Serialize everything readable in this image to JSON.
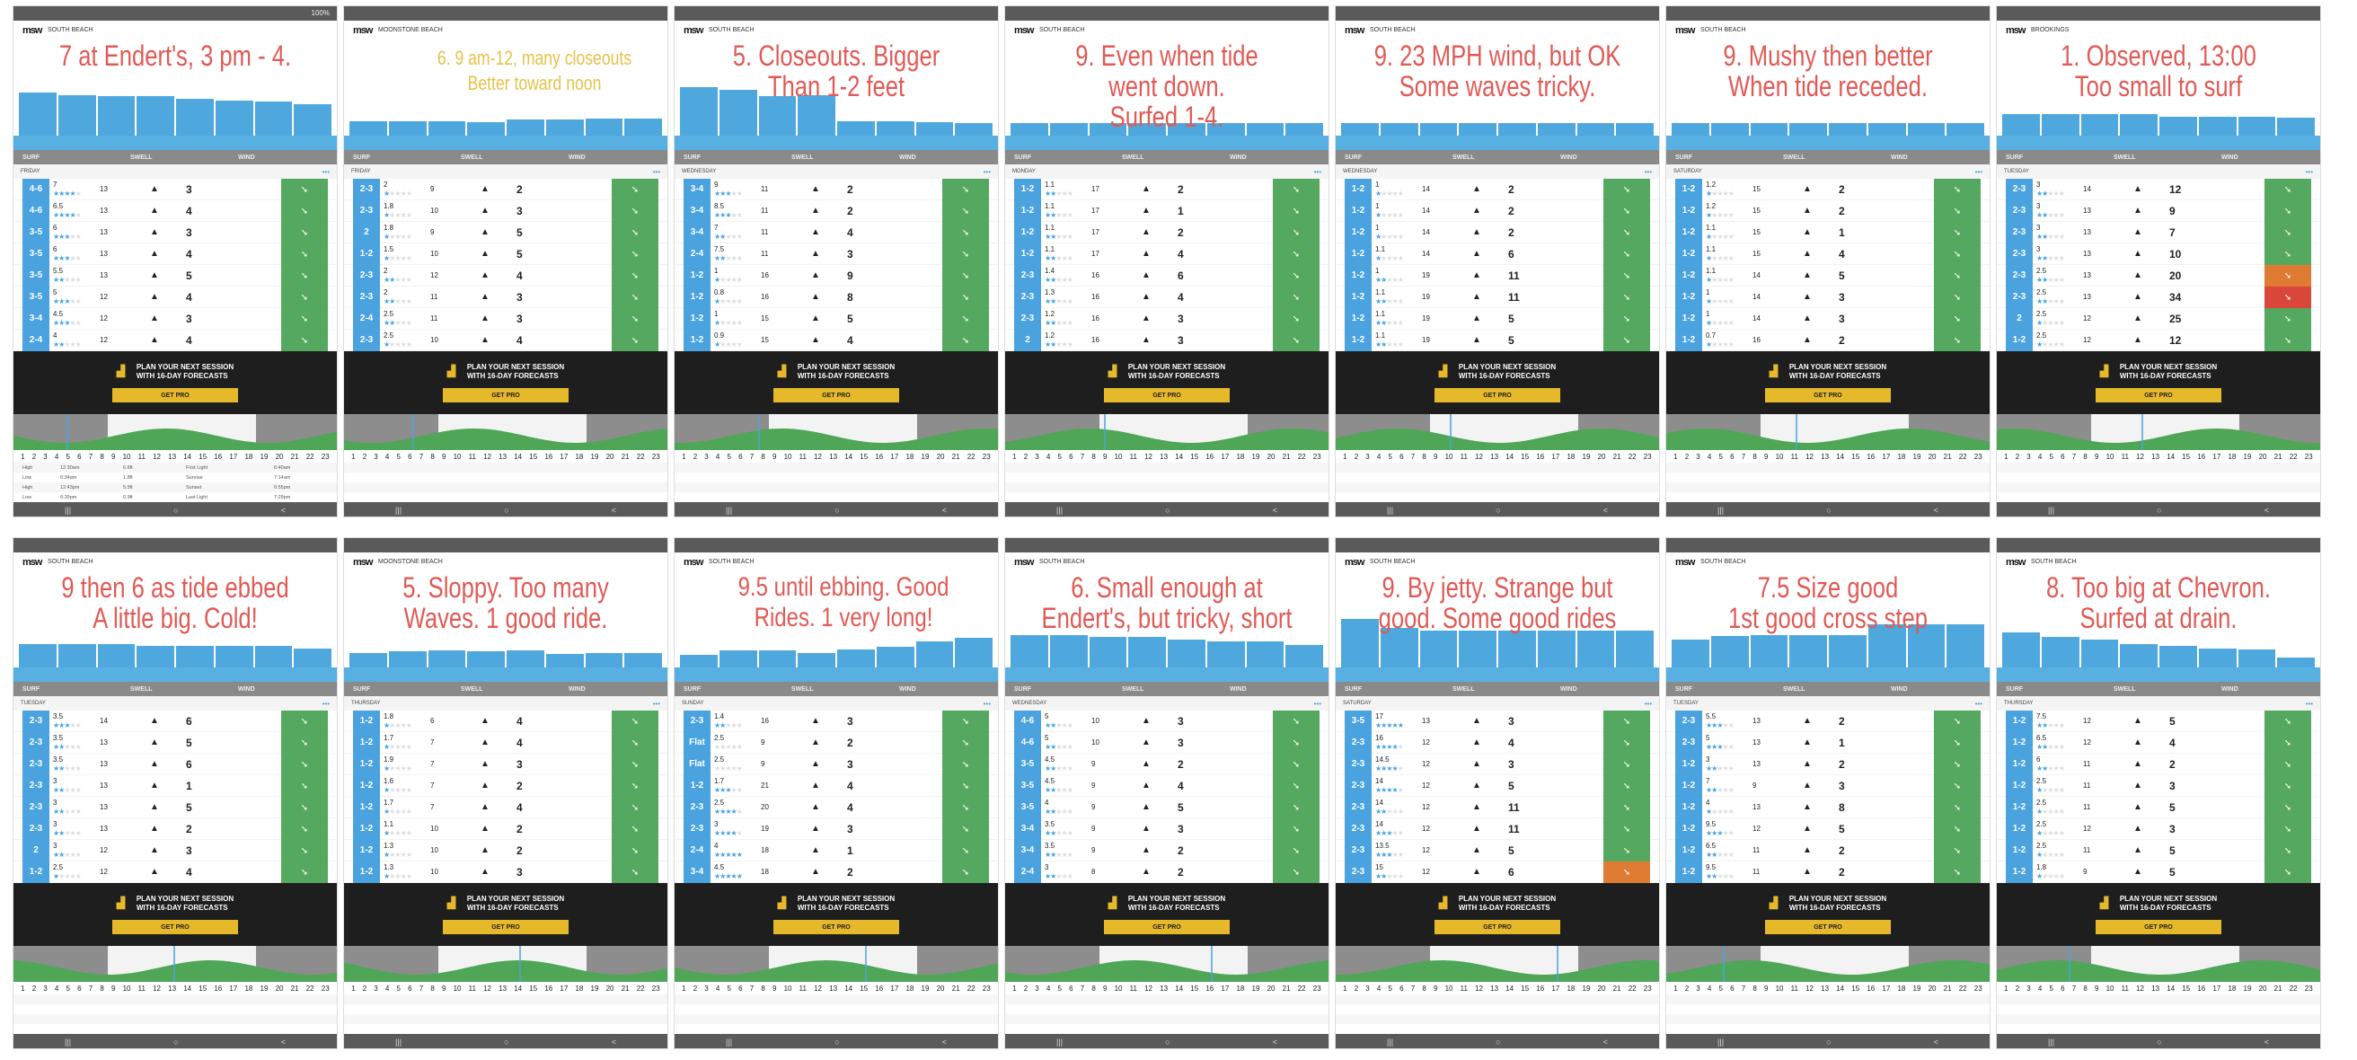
{
  "common": {
    "col_headers": [
      "SURF",
      "SWELL",
      "WIND"
    ],
    "promo_line1": "PLAN YOUR NEXT SESSION",
    "promo_line2": "WITH 16-DAY FORECASTS",
    "get_pro": "GET PRO",
    "logo": "msw",
    "hours": [
      "1",
      "2",
      "3",
      "4",
      "5",
      "6",
      "7",
      "8",
      "9",
      "10",
      "11",
      "12",
      "13",
      "14",
      "15",
      "16",
      "17",
      "18",
      "19",
      "20",
      "21",
      "22",
      "23"
    ],
    "nav": [
      "|||",
      "○",
      "<"
    ],
    "more": "•••"
  },
  "colors": {
    "surf": "#4aa3df",
    "wind_good": "#55a85f",
    "wind_orange": "#e07b33",
    "wind_red": "#d9473c",
    "note": "#e05a55",
    "note_yellow": "#e8c14a",
    "promo": "#e6b92b"
  },
  "panels": [
    {
      "note": "7 at Endert's, 3 pm - 4.",
      "location": "South Beach",
      "day": "FRIDAY",
      "battery": "100%",
      "bars": [
        3.5,
        3.3,
        3.2,
        3.2,
        3,
        2.8,
        2.7,
        2.5
      ],
      "rows": [
        [
          "4-6",
          "7",
          4,
          "13",
          "3",
          "g"
        ],
        [
          "4-6",
          "6.5",
          4,
          "13",
          "4",
          "g"
        ],
        [
          "3-5",
          "6",
          3,
          "13",
          "3",
          "g"
        ],
        [
          "3-5",
          "6",
          3,
          "13",
          "4",
          "g"
        ],
        [
          "3-5",
          "5.5",
          2,
          "13",
          "5",
          "g"
        ],
        [
          "3-5",
          "5",
          3,
          "12",
          "4",
          "g"
        ],
        [
          "3-4",
          "4.5",
          3,
          "12",
          "3",
          "g"
        ],
        [
          "2-4",
          "4",
          2,
          "12",
          "4",
          "g"
        ]
      ],
      "tides": [
        [
          "High",
          "12:30am",
          "6.6ft",
          "First Light",
          "6:40am"
        ],
        [
          "Low",
          "6:34am",
          "1.8ft",
          "Sunrise",
          "7:14am"
        ],
        [
          "High",
          "12:43pm",
          "5.5ft",
          "Sunset",
          "6:55pm"
        ],
        [
          "Low",
          "6:39pm",
          "0.9ft",
          "Last Light",
          "7:29pm"
        ]
      ]
    },
    {
      "note": "6. 9 am-12, many closeouts\nBetter toward noon",
      "note_style": "yellow",
      "location": "Moonstone Beach",
      "day": "FRIDAY",
      "bars": [
        1,
        1,
        1,
        0.9,
        1.1,
        1.1,
        1.2,
        1.2
      ],
      "rows": [
        [
          "2-3",
          "2",
          1,
          "9",
          "2",
          "g"
        ],
        [
          "2-3",
          "1.8",
          1,
          "10",
          "3",
          "g"
        ],
        [
          "2",
          "1.8",
          1,
          "9",
          "5",
          "g"
        ],
        [
          "1-2",
          "1.5",
          1,
          "10",
          "5",
          "g"
        ],
        [
          "2-3",
          "2",
          2,
          "12",
          "4",
          "g"
        ],
        [
          "2-3",
          "2",
          2,
          "11",
          "3",
          "g"
        ],
        [
          "2-4",
          "2.5",
          2,
          "11",
          "3",
          "g"
        ],
        [
          "2-3",
          "2.5",
          1,
          "10",
          "4",
          "g"
        ]
      ]
    },
    {
      "note": "5. Closeouts. Bigger\nThan 1-2 feet",
      "location": "South Beach",
      "day": "WEDNESDAY",
      "bars": [
        4,
        3.8,
        3.2,
        3.3,
        1,
        1,
        0.9,
        0.8
      ],
      "rows": [
        [
          "3-4",
          "9",
          3,
          "11",
          "2",
          "g"
        ],
        [
          "3-4",
          "8.5",
          3,
          "11",
          "2",
          "g"
        ],
        [
          "3-4",
          "7",
          2,
          "11",
          "4",
          "g"
        ],
        [
          "2-4",
          "7.5",
          2,
          "11",
          "3",
          "g"
        ],
        [
          "1-2",
          "1",
          1,
          "16",
          "9",
          "g"
        ],
        [
          "1-2",
          "0.8",
          1,
          "16",
          "8",
          "g"
        ],
        [
          "1-2",
          "1",
          1,
          "15",
          "5",
          "g"
        ],
        [
          "1-2",
          "0.9",
          1,
          "15",
          "4",
          "g"
        ]
      ]
    },
    {
      "note": "9. Even when tide\nwent down.\nSurfed 1-4.",
      "location": "South Beach",
      "day": "MONDAY",
      "bars": [
        0.8,
        0.8,
        0.8,
        0.8,
        0.8,
        0.8,
        0.8,
        0.8
      ],
      "rows": [
        [
          "1-2",
          "1.1",
          2,
          "17",
          "2",
          "g"
        ],
        [
          "1-2",
          "1.1",
          2,
          "17",
          "1",
          "g"
        ],
        [
          "1-2",
          "1.1",
          2,
          "17",
          "2",
          "g"
        ],
        [
          "1-2",
          "1.1",
          2,
          "17",
          "4",
          "g"
        ],
        [
          "2-3",
          "1.4",
          2,
          "16",
          "6",
          "g"
        ],
        [
          "2-3",
          "1.3",
          2,
          "16",
          "4",
          "g"
        ],
        [
          "2-3",
          "1.2",
          2,
          "16",
          "3",
          "g"
        ],
        [
          "2",
          "1.2",
          2,
          "16",
          "3",
          "g"
        ]
      ]
    },
    {
      "note": "9. 23 MPH wind, but OK\nSome waves tricky.",
      "location": "South Beach",
      "day": "WEDNESDAY",
      "bars": [
        0.8,
        0.8,
        0.8,
        0.8,
        0.8,
        0.8,
        0.8,
        0.8
      ],
      "rows": [
        [
          "1-2",
          "1",
          1,
          "14",
          "2",
          "g"
        ],
        [
          "1-2",
          "1",
          1,
          "14",
          "2",
          "g"
        ],
        [
          "1-2",
          "1",
          1,
          "14",
          "2",
          "g"
        ],
        [
          "1-2",
          "1.1",
          1,
          "14",
          "6",
          "g"
        ],
        [
          "1-2",
          "1",
          2,
          "19",
          "11",
          "g"
        ],
        [
          "1-2",
          "1.1",
          2,
          "19",
          "11",
          "g"
        ],
        [
          "1-2",
          "1.1",
          2,
          "19",
          "5",
          "g"
        ],
        [
          "1-2",
          "1.1",
          2,
          "19",
          "5",
          "g"
        ]
      ]
    },
    {
      "note": "9. Mushy then better\nWhen tide receded.",
      "location": "South Beach",
      "day": "SATURDAY",
      "bars": [
        0.8,
        0.8,
        0.8,
        0.8,
        0.8,
        0.8,
        0.8,
        0.8
      ],
      "rows": [
        [
          "1-2",
          "1.2",
          1,
          "15",
          "2",
          "g"
        ],
        [
          "1-2",
          "1.2",
          1,
          "15",
          "2",
          "g"
        ],
        [
          "1-2",
          "1.1",
          1,
          "15",
          "1",
          "g"
        ],
        [
          "1-2",
          "1.1",
          1,
          "15",
          "4",
          "g"
        ],
        [
          "1-2",
          "1.1",
          1,
          "14",
          "5",
          "g"
        ],
        [
          "1-2",
          "1",
          1,
          "14",
          "3",
          "g"
        ],
        [
          "1-2",
          "1",
          1,
          "14",
          "3",
          "g"
        ],
        [
          "1-2",
          "0.7",
          1,
          "16",
          "2",
          "g"
        ]
      ]
    },
    {
      "note": "1. Observed, 13:00\nToo small to surf",
      "location": "Brookings",
      "day": "TUESDAY",
      "bars": [
        1.6,
        1.6,
        1.6,
        1.6,
        1.4,
        1.4,
        1.4,
        1.3
      ],
      "rows": [
        [
          "2-3",
          "3",
          2,
          "14",
          "12",
          "g"
        ],
        [
          "2-3",
          "3",
          2,
          "13",
          "9",
          "g"
        ],
        [
          "2-3",
          "3",
          2,
          "13",
          "7",
          "g"
        ],
        [
          "2-3",
          "3",
          2,
          "13",
          "10",
          "g"
        ],
        [
          "2-3",
          "2.5",
          2,
          "13",
          "20",
          "o"
        ],
        [
          "2-3",
          "2.5",
          2,
          "13",
          "34",
          "r"
        ],
        [
          "2",
          "2.5",
          1,
          "12",
          "25",
          "g"
        ],
        [
          "1-2",
          "2.5",
          1,
          "12",
          "12",
          "g"
        ]
      ]
    },
    {
      "note": "9 then 6 as tide ebbed\nA little big. Cold!",
      "location": "South Beach",
      "day": "TUESDAY",
      "bars": [
        1.8,
        1.8,
        1.8,
        1.6,
        1.6,
        1.6,
        1.6,
        1.4
      ],
      "rows": [
        [
          "2-3",
          "3.5",
          3,
          "14",
          "6",
          "g"
        ],
        [
          "2-3",
          "3.5",
          2,
          "13",
          "5",
          "g"
        ],
        [
          "2-3",
          "3.5",
          2,
          "13",
          "6",
          "g"
        ],
        [
          "2-3",
          "3",
          2,
          "13",
          "1",
          "g"
        ],
        [
          "2-3",
          "3",
          2,
          "13",
          "5",
          "g"
        ],
        [
          "2-3",
          "3",
          2,
          "13",
          "2",
          "g"
        ],
        [
          "2",
          "3",
          2,
          "12",
          "3",
          "g"
        ],
        [
          "1-2",
          "2.5",
          1,
          "12",
          "4",
          "g"
        ]
      ]
    },
    {
      "note": "5. Sloppy. Too many\nWaves. 1 good ride.",
      "location": "Moonstone Beach",
      "day": "THURSDAY",
      "bars": [
        1,
        1.1,
        1.2,
        1.1,
        1.2,
        0.9,
        1,
        1
      ],
      "rows": [
        [
          "1-2",
          "1.8",
          1,
          "6",
          "4",
          "g"
        ],
        [
          "1-2",
          "1.7",
          1,
          "7",
          "4",
          "g"
        ],
        [
          "1-2",
          "1.9",
          1,
          "7",
          "3",
          "g"
        ],
        [
          "1-2",
          "1.6",
          1,
          "7",
          "2",
          "g"
        ],
        [
          "1-2",
          "1.7",
          1,
          "7",
          "4",
          "g"
        ],
        [
          "1-2",
          "1.1",
          1,
          "10",
          "2",
          "g"
        ],
        [
          "1-2",
          "1.3",
          1,
          "10",
          "2",
          "g"
        ],
        [
          "1-2",
          "1.3",
          1,
          "10",
          "3",
          "g"
        ]
      ]
    },
    {
      "note": "9.5 until ebbing. Good\nRides. 1 very long!",
      "note_style": "mid",
      "location": "South Beach",
      "day": "SUNDAY",
      "bars": [
        0.8,
        1.2,
        1.2,
        1,
        1.3,
        1.5,
        2,
        2.3
      ],
      "rows": [
        [
          "2-3",
          "1.4",
          2,
          "16",
          "3",
          "g"
        ],
        [
          "Flat",
          "2.5",
          0,
          "9",
          "2",
          "g"
        ],
        [
          "Flat",
          "2.5",
          0,
          "9",
          "3",
          "g"
        ],
        [
          "1-2",
          "1.7",
          3,
          "21",
          "4",
          "g"
        ],
        [
          "2-3",
          "2.5",
          4,
          "20",
          "4",
          "g"
        ],
        [
          "2-3",
          "3",
          4,
          "19",
          "3",
          "g"
        ],
        [
          "2-4",
          "4",
          5,
          "18",
          "1",
          "g"
        ],
        [
          "3-4",
          "4.5",
          5,
          "18",
          "2",
          "g"
        ]
      ]
    },
    {
      "note": "6. Small enough at\nEndert's, but tricky, short",
      "location": "South Beach",
      "day": "WEDNESDAY",
      "bars": [
        2.6,
        2.6,
        2.4,
        2.4,
        2.2,
        2,
        2,
        1.7
      ],
      "rows": [
        [
          "4-6",
          "5",
          2,
          "10",
          "3",
          "g"
        ],
        [
          "4-6",
          "5",
          2,
          "10",
          "3",
          "g"
        ],
        [
          "3-5",
          "4.5",
          2,
          "9",
          "2",
          "g"
        ],
        [
          "3-5",
          "4.5",
          2,
          "9",
          "4",
          "g"
        ],
        [
          "3-5",
          "4",
          2,
          "9",
          "5",
          "g"
        ],
        [
          "3-4",
          "3.5",
          2,
          "9",
          "3",
          "g"
        ],
        [
          "3-4",
          "3.5",
          2,
          "9",
          "2",
          "g"
        ],
        [
          "2-4",
          "3",
          2,
          "8",
          "2",
          "g"
        ]
      ]
    },
    {
      "note": "9. By jetty. Strange but\ngood. Some good rides",
      "location": "South Beach",
      "day": "SATURDAY",
      "bars": [
        4,
        3.2,
        3,
        3,
        3,
        3,
        3,
        3
      ],
      "rows": [
        [
          "3-5",
          "17",
          5,
          "13",
          "3",
          "g"
        ],
        [
          "2-3",
          "16",
          4,
          "12",
          "4",
          "g"
        ],
        [
          "2-3",
          "14.5",
          4,
          "12",
          "3",
          "g"
        ],
        [
          "2-3",
          "14",
          4,
          "12",
          "5",
          "g"
        ],
        [
          "2-3",
          "14",
          2,
          "12",
          "11",
          "g"
        ],
        [
          "2-3",
          "14",
          3,
          "12",
          "11",
          "g"
        ],
        [
          "2-3",
          "13.5",
          3,
          "12",
          "5",
          "g"
        ],
        [
          "2-3",
          "15",
          2,
          "12",
          "6",
          "o"
        ]
      ]
    },
    {
      "note": "7.5 Size good\n1st good cross step",
      "location": "South Beach",
      "day": "TUESDAY",
      "bars": [
        2.2,
        2.5,
        2.6,
        2.6,
        2.6,
        3.5,
        3.5,
        3.5
      ],
      "rows": [
        [
          "2-3",
          "5.5",
          3,
          "13",
          "2",
          "g"
        ],
        [
          "2-3",
          "5",
          3,
          "13",
          "1",
          "g"
        ],
        [
          "1-2",
          "3",
          2,
          "13",
          "2",
          "g"
        ],
        [
          "1-2",
          "7",
          2,
          "9",
          "3",
          "g"
        ],
        [
          "1-2",
          "4",
          1,
          "13",
          "8",
          "g"
        ],
        [
          "1-2",
          "9.5",
          3,
          "12",
          "5",
          "g"
        ],
        [
          "1-2",
          "6.5",
          2,
          "11",
          "2",
          "g"
        ],
        [
          "1-2",
          "9.5",
          2,
          "11",
          "2",
          "g"
        ]
      ]
    },
    {
      "note": "8. Too big at Chevron.\nSurfed at drain.",
      "location": "South Beach",
      "day": "THURSDAY",
      "bars": [
        2.8,
        2.4,
        2.2,
        1.8,
        1.6,
        1.4,
        1.3,
        0.6
      ],
      "rows": [
        [
          "1-2",
          "7.5",
          2,
          "12",
          "5",
          "g"
        ],
        [
          "1-2",
          "6.5",
          2,
          "12",
          "4",
          "g"
        ],
        [
          "1-2",
          "6",
          2,
          "11",
          "2",
          "g"
        ],
        [
          "1-2",
          "2.5",
          1,
          "11",
          "3",
          "g"
        ],
        [
          "1-2",
          "2.5",
          1,
          "11",
          "5",
          "g"
        ],
        [
          "1-2",
          "2.5",
          1,
          "12",
          "3",
          "g"
        ],
        [
          "1-2",
          "2.5",
          1,
          "11",
          "5",
          "g"
        ],
        [
          "1-2",
          "1.8",
          1,
          "9",
          "5",
          "g"
        ]
      ]
    }
  ]
}
